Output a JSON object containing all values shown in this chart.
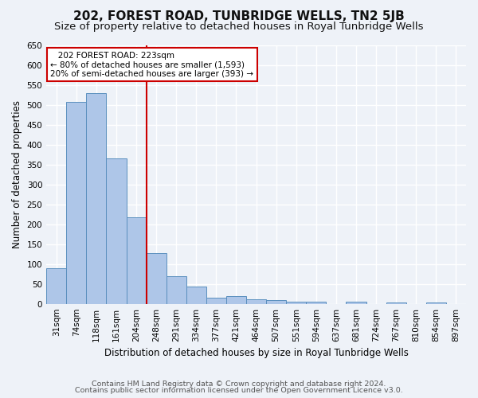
{
  "title": "202, FOREST ROAD, TUNBRIDGE WELLS, TN2 5JB",
  "subtitle": "Size of property relative to detached houses in Royal Tunbridge Wells",
  "xlabel": "Distribution of detached houses by size in Royal Tunbridge Wells",
  "ylabel": "Number of detached properties",
  "footer_line1": "Contains HM Land Registry data © Crown copyright and database right 2024.",
  "footer_line2": "Contains public sector information licensed under the Open Government Licence v3.0.",
  "categories": [
    "31sqm",
    "74sqm",
    "118sqm",
    "161sqm",
    "204sqm",
    "248sqm",
    "291sqm",
    "334sqm",
    "377sqm",
    "421sqm",
    "464sqm",
    "507sqm",
    "551sqm",
    "594sqm",
    "637sqm",
    "681sqm",
    "724sqm",
    "767sqm",
    "810sqm",
    "854sqm",
    "897sqm"
  ],
  "values": [
    90,
    507,
    530,
    365,
    218,
    127,
    70,
    43,
    15,
    20,
    12,
    10,
    6,
    5,
    0,
    5,
    0,
    4,
    0,
    4,
    0
  ],
  "bar_color": "#aec6e8",
  "bar_edge_color": "#5a8fbe",
  "annotation_line1": "   202 FOREST ROAD: 223sqm",
  "annotation_line2": "← 80% of detached houses are smaller (1,593)",
  "annotation_line3": "20% of semi-detached houses are larger (393) →",
  "vline_x": 4.5,
  "vline_color": "#cc0000",
  "annotation_box_edge_color": "#cc0000",
  "ylim": [
    0,
    650
  ],
  "yticks": [
    0,
    50,
    100,
    150,
    200,
    250,
    300,
    350,
    400,
    450,
    500,
    550,
    600,
    650
  ],
  "background_color": "#eef2f8",
  "grid_color": "#ffffff",
  "title_fontsize": 11,
  "subtitle_fontsize": 9.5,
  "axis_label_fontsize": 8.5,
  "tick_fontsize": 7.5,
  "footer_fontsize": 6.8
}
